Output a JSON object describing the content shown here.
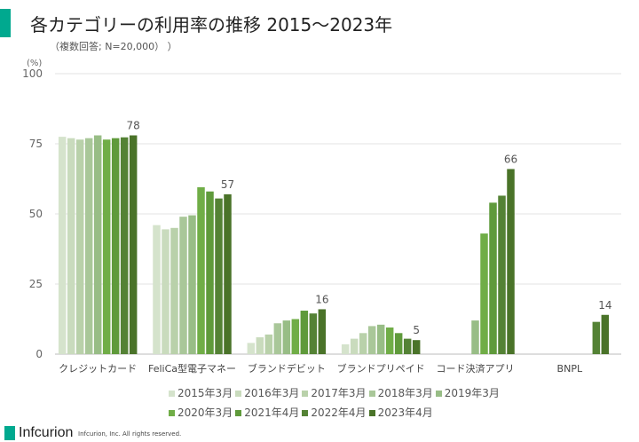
{
  "header": {
    "title": "各カテゴリーの利用率の推移  2015～2023年",
    "subtitle": "（複数回答; N=20,000）  ）"
  },
  "chart_data": {
    "type": "bar",
    "ylabel": "(%)",
    "ylim": [
      0,
      100
    ],
    "yticks": [
      "0",
      "25",
      "50",
      "75",
      "100"
    ],
    "grid": true,
    "legend_placement": "bottom",
    "categories": [
      "クレジットカード",
      "FeliCa型電子マネー",
      "ブランドデビット",
      "ブランドプリペイド",
      "コード決済アプリ",
      "BNPL"
    ],
    "series": [
      {
        "name": "2015年3月",
        "color": "#d5e3cc",
        "values": [
          77.5,
          46,
          4,
          3.5,
          null,
          null
        ]
      },
      {
        "name": "2016年3月",
        "color": "#c9dbbd",
        "values": [
          77,
          44.5,
          6,
          5.5,
          null,
          null
        ]
      },
      {
        "name": "2017年3月",
        "color": "#b9d1aa",
        "values": [
          76.5,
          45,
          7,
          7.5,
          null,
          null
        ]
      },
      {
        "name": "2018年3月",
        "color": "#a9c799",
        "values": [
          77,
          49,
          11,
          10,
          null,
          null
        ]
      },
      {
        "name": "2019年3月",
        "color": "#98bd86",
        "values": [
          78,
          49.5,
          12,
          10.5,
          12,
          null
        ]
      },
      {
        "name": "2020年3月",
        "color": "#70ad47",
        "values": [
          76.5,
          59.5,
          12.5,
          9.5,
          43,
          null
        ]
      },
      {
        "name": "2021年4月",
        "color": "#5f9a3b",
        "values": [
          77,
          58,
          15.5,
          7.5,
          54,
          null
        ]
      },
      {
        "name": "2022年4月",
        "color": "#548235",
        "values": [
          77.3,
          55.5,
          14.5,
          5.5,
          56.5,
          11.5
        ]
      },
      {
        "name": "2023年4月",
        "color": "#4a7329",
        "values": [
          78,
          57,
          16,
          5,
          66,
          14
        ]
      }
    ],
    "data_labels": [
      "78",
      "57",
      "16",
      "5",
      "66",
      "14"
    ]
  },
  "footer": {
    "logo": "Infcurion",
    "copyright": "Infcurion, Inc.  All rights reserved."
  }
}
